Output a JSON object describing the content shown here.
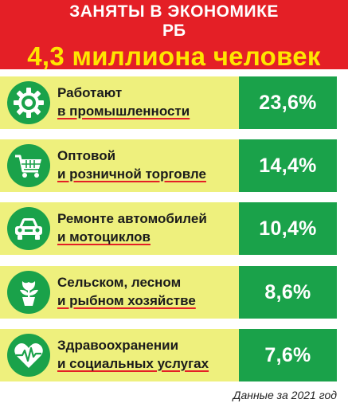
{
  "header": {
    "line1": "ЗАНЯТЫ В ЭКОНОМИКЕ",
    "line2": "РБ",
    "line3": "4,3 миллиона человек"
  },
  "chart_data": {
    "type": "table",
    "unit": "%",
    "categories": [
      "Работают в промышленности",
      "Оптовой и розничной торговле",
      "Ремонте автомобилей и мотоциклов",
      "Сельском, лесном и рыбном хозяйстве",
      "Здравоохранении и социальных услугах"
    ],
    "values": [
      23.6,
      14.4,
      10.4,
      8.6,
      7.6
    ]
  },
  "rows": [
    {
      "line1": "Работают",
      "line2": "в промышленности",
      "value": "23,6%",
      "icon": "gear-icon"
    },
    {
      "line1": "Оптовой",
      "line2": "и розничной торговле",
      "value": "14,4%",
      "icon": "shopping-cart-icon"
    },
    {
      "line1": "Ремонте автомобилей",
      "line2": "и мотоциклов",
      "value": "10,4%",
      "icon": "car-icon"
    },
    {
      "line1": "Сельском, лесном",
      "line2": "и рыбном хозяйстве",
      "value": "8,6%",
      "icon": "flower-pot-icon"
    },
    {
      "line1": "Здравоохранении",
      "line2": "и социальных услугах",
      "value": "7,6%",
      "icon": "heart-pulse-icon"
    }
  ],
  "footnote": "Данные за 2021 год",
  "colors": {
    "red": "#e41f26",
    "yellow_text": "#ffe600",
    "green": "#1aa24a",
    "row_bg": "#eef07d"
  }
}
